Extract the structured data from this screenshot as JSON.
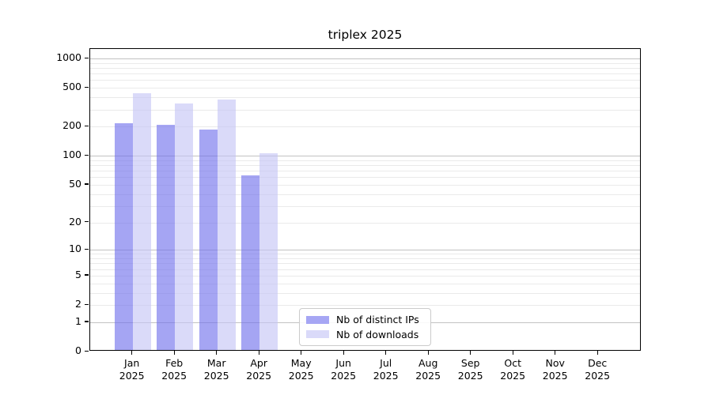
{
  "title": "triplex 2025",
  "legend": {
    "items": [
      {
        "label": "Nb of distinct IPs",
        "color": "#a6a6f4"
      },
      {
        "label": "Nb of downloads",
        "color": "#dadaf9"
      }
    ]
  },
  "chart_data": {
    "type": "bar",
    "title": "triplex 2025",
    "categories": [
      "Jan 2025",
      "Feb 2025",
      "Mar 2025",
      "Apr 2025",
      "May 2025",
      "Jun 2025",
      "Jul 2025",
      "Aug 2025",
      "Sep 2025",
      "Oct 2025",
      "Nov 2025",
      "Dec 2025"
    ],
    "series": [
      {
        "name": "Nb of distinct IPs",
        "fill": "rgba(110,110,236,0.62)",
        "values": [
          210,
          200,
          178,
          60,
          null,
          null,
          null,
          null,
          null,
          null,
          null,
          null
        ]
      },
      {
        "name": "Nb of downloads",
        "fill": "rgba(196,196,246,0.62)",
        "values": [
          427,
          330,
          364,
          103,
          null,
          null,
          null,
          null,
          null,
          null,
          null,
          null
        ]
      }
    ],
    "yscale": "log1p",
    "ylim": [
      0,
      1252
    ],
    "yticks": [
      0,
      1,
      2,
      5,
      10,
      20,
      50,
      100,
      200,
      500,
      1000
    ],
    "yticklabels": [
      "0",
      "1",
      "2",
      "5",
      "10",
      "20",
      "50",
      "100",
      "200",
      "500",
      "1000"
    ],
    "grid_major": [
      1,
      10,
      100,
      1000
    ],
    "grid_minor": [
      2,
      3,
      4,
      5,
      6,
      7,
      8,
      9,
      20,
      30,
      40,
      50,
      60,
      70,
      80,
      90,
      200,
      300,
      400,
      500,
      600,
      700,
      800,
      900
    ],
    "grid": true,
    "legend_position": "lower center",
    "xlabel": "",
    "ylabel": ""
  },
  "colors": {
    "grid_major": "#c2c2c2",
    "grid_minor": "#eaeaea",
    "axis": "#000000",
    "background": "#ffffff"
  }
}
